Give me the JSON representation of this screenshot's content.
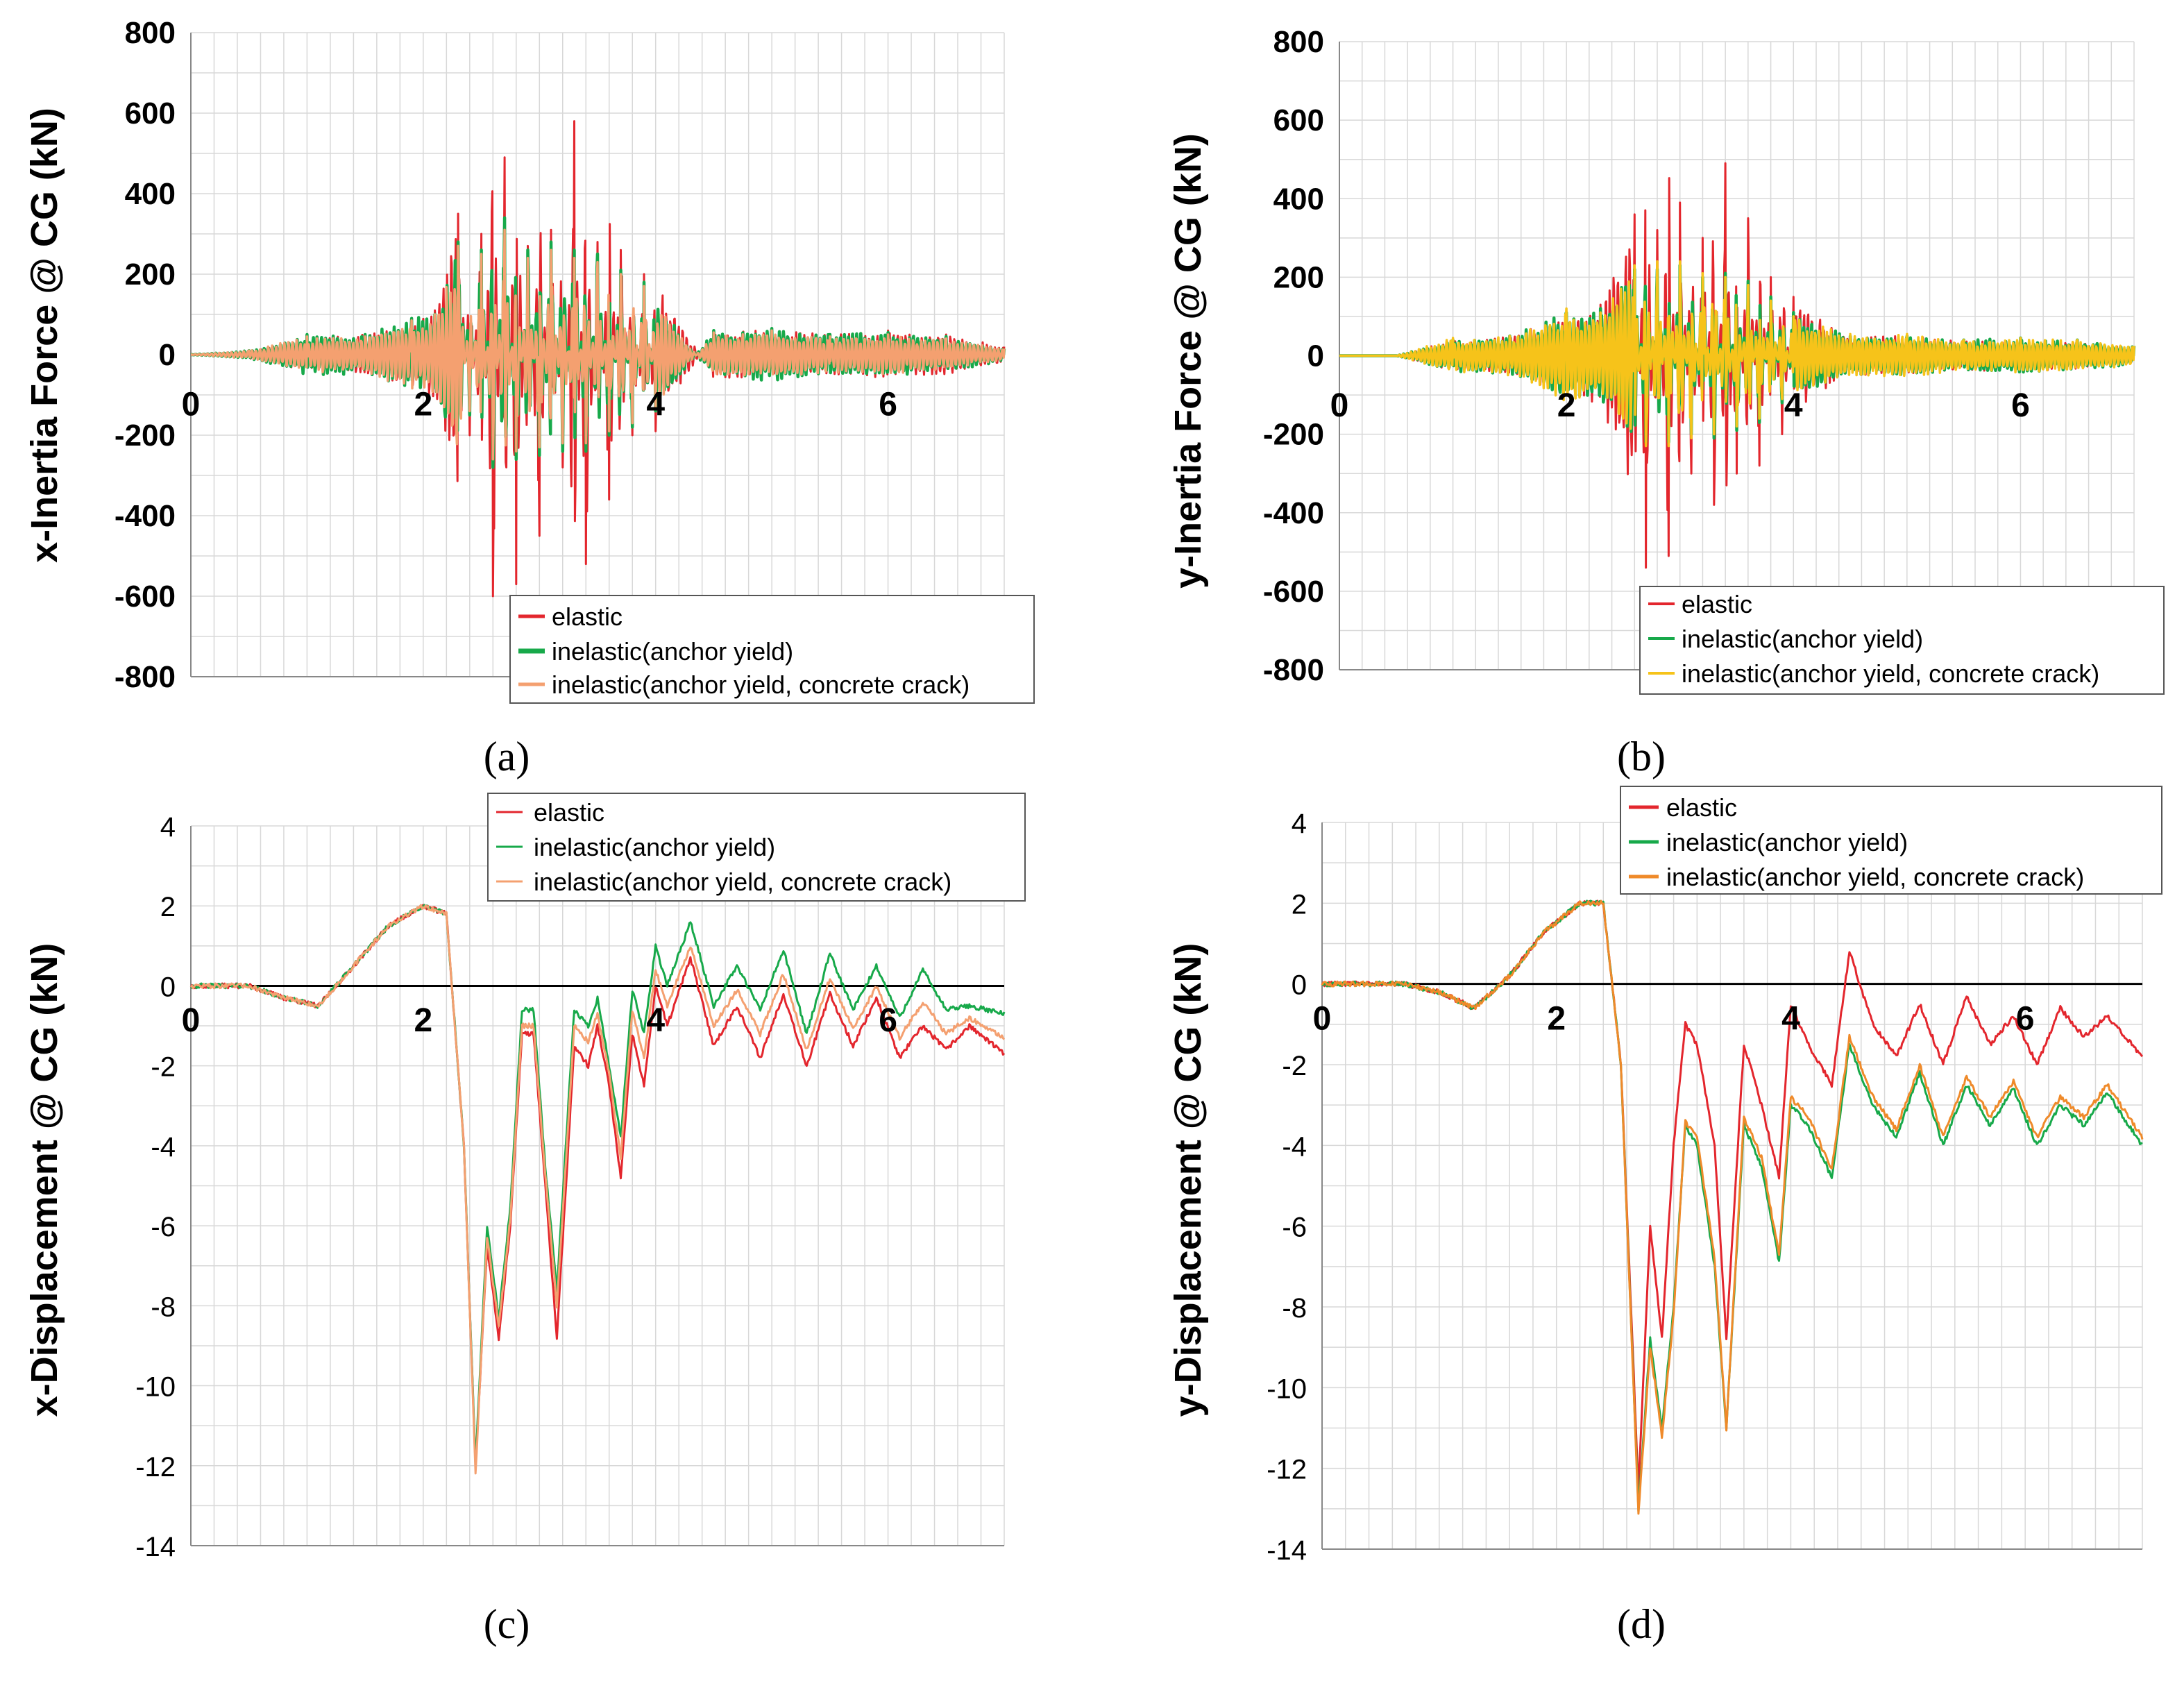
{
  "figure": {
    "captions": [
      "(a)",
      "(b)",
      "(c)",
      "(d)"
    ]
  },
  "colors": {
    "elastic": "#e3262d",
    "inelastic_anchor": "#17a94a",
    "inelastic_crack_a": "#f4a070",
    "inelastic_crack_b": "#f6c31a",
    "inelastic_crack_d": "#ef8a2a",
    "grid": "#d8d8d8",
    "axis": "#000000"
  },
  "chart_data": [
    {
      "id": "a",
      "type": "line",
      "caption": "(a)",
      "ylabel": "x-Inertia Force @ CG (kN)",
      "xlim": [
        0,
        7
      ],
      "ylim": [
        -800,
        800
      ],
      "yticks": [
        -800,
        -600,
        -400,
        -200,
        0,
        200,
        400,
        600,
        800
      ],
      "xticks": [
        0,
        2,
        4,
        6
      ],
      "legend_position": "bottom-right",
      "series": [
        {
          "name": "elastic",
          "color_key": "elastic",
          "x": [
            0,
            0.5,
            1.0,
            1.5,
            1.9,
            2.1,
            2.3,
            2.4,
            2.5,
            2.6,
            2.7,
            2.8,
            2.9,
            3.0,
            3.1,
            3.2,
            3.3,
            3.4,
            3.5,
            3.6,
            3.7,
            3.8,
            3.9,
            4.0,
            4.5,
            5.0,
            5.5,
            6.0,
            6.5,
            7.0
          ],
          "y": [
            0,
            10,
            40,
            50,
            80,
            110,
            350,
            -200,
            300,
            -600,
            490,
            -570,
            270,
            -450,
            310,
            -280,
            580,
            -520,
            280,
            -360,
            260,
            -200,
            200,
            -190,
            60,
            60,
            50,
            60,
            50,
            20
          ]
        },
        {
          "name": "inelastic(anchor yield)",
          "color_key": "inelastic_anchor",
          "x": [
            0,
            0.5,
            1.0,
            1.5,
            1.9,
            2.1,
            2.3,
            2.4,
            2.5,
            2.6,
            2.7,
            2.8,
            2.9,
            3.0,
            3.1,
            3.2,
            3.3,
            3.4,
            3.5,
            3.6,
            3.7,
            3.8,
            3.9,
            4.0,
            4.5,
            5.0,
            5.5,
            6.0,
            6.5,
            7.0
          ],
          "y": [
            0,
            10,
            50,
            50,
            90,
            100,
            280,
            -150,
            260,
            -280,
            340,
            -260,
            260,
            -250,
            280,
            -240,
            260,
            -240,
            250,
            -200,
            210,
            -180,
            180,
            -140,
            60,
            65,
            50,
            55,
            45,
            15
          ]
        },
        {
          "name": "inelastic(anchor yield, concrete crack)",
          "color_key": "inelastic_crack_a",
          "x": [
            0,
            0.5,
            1.0,
            1.5,
            1.9,
            2.1,
            2.3,
            2.4,
            2.5,
            2.6,
            2.7,
            2.8,
            2.9,
            3.0,
            3.1,
            3.2,
            3.3,
            3.4,
            3.5,
            3.6,
            3.7,
            3.8,
            3.9,
            4.0,
            4.5,
            5.0,
            5.5,
            6.0,
            6.5,
            7.0
          ],
          "y": [
            0,
            10,
            45,
            45,
            85,
            100,
            270,
            -140,
            250,
            -260,
            310,
            -240,
            240,
            -230,
            260,
            -220,
            240,
            -220,
            230,
            -190,
            200,
            -170,
            170,
            -130,
            55,
            60,
            45,
            50,
            40,
            15
          ]
        }
      ]
    },
    {
      "id": "b",
      "type": "line",
      "caption": "(b)",
      "ylabel": "y-Inertia Force @ CG (kN)",
      "xlim": [
        0,
        7
      ],
      "ylim": [
        -800,
        800
      ],
      "yticks": [
        -800,
        -600,
        -400,
        -200,
        0,
        200,
        400,
        600,
        800
      ],
      "xticks": [
        0,
        2,
        4,
        6
      ],
      "legend_position": "bottom-right",
      "series": [
        {
          "name": "elastic",
          "color_key": "elastic",
          "x": [
            0,
            0.5,
            1.0,
            1.5,
            2.0,
            2.3,
            2.6,
            2.7,
            2.8,
            2.9,
            3.0,
            3.1,
            3.2,
            3.3,
            3.4,
            3.5,
            3.6,
            3.7,
            3.8,
            3.9,
            4.0,
            4.5,
            5.0,
            5.5,
            6.0,
            6.5,
            7.0
          ],
          "y": [
            0,
            0,
            40,
            50,
            100,
            130,
            360,
            -540,
            320,
            -510,
            390,
            -300,
            300,
            -380,
            490,
            -300,
            350,
            -280,
            200,
            -200,
            150,
            50,
            50,
            40,
            40,
            35,
            20
          ]
        },
        {
          "name": "inelastic(anchor yield)",
          "color_key": "inelastic_anchor",
          "x": [
            0,
            0.5,
            1.0,
            1.5,
            2.0,
            2.3,
            2.6,
            2.7,
            2.8,
            2.9,
            3.0,
            3.1,
            3.2,
            3.3,
            3.4,
            3.5,
            3.6,
            3.7,
            3.8,
            3.9,
            4.0,
            4.5,
            5.0,
            5.5,
            6.0,
            6.5,
            7.0
          ],
          "y": [
            0,
            0,
            40,
            50,
            110,
            120,
            220,
            -220,
            220,
            -220,
            230,
            -200,
            200,
            -210,
            210,
            -190,
            190,
            -170,
            150,
            -120,
            110,
            50,
            50,
            40,
            45,
            40,
            25
          ]
        },
        {
          "name": "inelastic(anchor yield, concrete crack)",
          "color_key": "inelastic_crack_b",
          "x": [
            0,
            0.5,
            1.0,
            1.5,
            2.0,
            2.3,
            2.6,
            2.7,
            2.8,
            2.9,
            3.0,
            3.1,
            3.2,
            3.3,
            3.4,
            3.5,
            3.6,
            3.7,
            3.8,
            3.9,
            4.0,
            4.5,
            5.0,
            5.5,
            6.0,
            6.5,
            7.0
          ],
          "y": [
            0,
            0,
            45,
            50,
            120,
            110,
            230,
            -230,
            240,
            -230,
            240,
            -210,
            210,
            -200,
            200,
            -180,
            180,
            -160,
            140,
            -110,
            100,
            55,
            55,
            40,
            45,
            40,
            25
          ]
        }
      ]
    },
    {
      "id": "c",
      "type": "line",
      "caption": "(c)",
      "ylabel": "x-Displacement @ CG (kN)",
      "xlim": [
        0,
        7
      ],
      "ylim": [
        -14,
        4
      ],
      "yticks": [
        -14,
        -12,
        -10,
        -8,
        -6,
        -4,
        -2,
        0,
        2,
        4
      ],
      "xticks": [
        0,
        2,
        4,
        6
      ],
      "legend_position": "top-right",
      "series": [
        {
          "name": "elastic",
          "color_key": "elastic",
          "x": [
            0,
            0.5,
            0.8,
            1.1,
            1.4,
            1.7,
            2.0,
            2.2,
            2.35,
            2.45,
            2.55,
            2.65,
            2.75,
            2.85,
            2.95,
            3.05,
            3.15,
            3.3,
            3.42,
            3.5,
            3.6,
            3.7,
            3.8,
            3.9,
            4.0,
            4.1,
            4.3,
            4.5,
            4.7,
            4.9,
            5.1,
            5.3,
            5.5,
            5.7,
            5.9,
            6.1,
            6.3,
            6.5,
            6.7,
            7.0
          ],
          "y": [
            0,
            0,
            -0.3,
            -0.5,
            0.5,
            1.5,
            2.0,
            1.8,
            -4.0,
            -12.0,
            -6.5,
            -8.8,
            -6.0,
            -1.2,
            -1.2,
            -5.0,
            -8.8,
            -1.5,
            -2.0,
            -1.0,
            -2.5,
            -4.8,
            -1.2,
            -2.5,
            0.0,
            -1.0,
            0.7,
            -1.5,
            -0.5,
            -1.8,
            -0.2,
            -2.0,
            -0.2,
            -1.5,
            -0.3,
            -1.8,
            -1.0,
            -1.6,
            -1.0,
            -1.7
          ]
        },
        {
          "name": "inelastic(anchor yield)",
          "color_key": "inelastic_anchor",
          "x": [
            0,
            0.5,
            0.8,
            1.1,
            1.4,
            1.7,
            2.0,
            2.2,
            2.35,
            2.45,
            2.55,
            2.65,
            2.75,
            2.85,
            2.95,
            3.05,
            3.15,
            3.3,
            3.42,
            3.5,
            3.6,
            3.7,
            3.8,
            3.9,
            4.0,
            4.1,
            4.3,
            4.5,
            4.7,
            4.9,
            5.1,
            5.3,
            5.5,
            5.7,
            5.9,
            6.1,
            6.3,
            6.5,
            6.7,
            7.0
          ],
          "y": [
            0,
            0,
            -0.3,
            -0.5,
            0.5,
            1.5,
            2.0,
            1.8,
            -4.0,
            -12.0,
            -6.0,
            -8.3,
            -5.5,
            -0.6,
            -0.6,
            -4.5,
            -7.6,
            -0.6,
            -1.0,
            -0.3,
            -2.0,
            -3.8,
            -0.1,
            -1.2,
            1.0,
            0.0,
            1.6,
            -0.5,
            0.5,
            -0.6,
            0.9,
            -1.2,
            0.8,
            -0.6,
            0.5,
            -0.8,
            0.4,
            -0.6,
            -0.5,
            -0.7
          ]
        },
        {
          "name": "inelastic(anchor yield, concrete crack)",
          "color_key": "inelastic_crack_a",
          "x": [
            0,
            0.5,
            0.8,
            1.1,
            1.4,
            1.7,
            2.0,
            2.2,
            2.35,
            2.45,
            2.55,
            2.65,
            2.75,
            2.85,
            2.95,
            3.05,
            3.15,
            3.3,
            3.42,
            3.5,
            3.6,
            3.7,
            3.8,
            3.9,
            4.0,
            4.1,
            4.3,
            4.5,
            4.7,
            4.9,
            5.1,
            5.3,
            5.5,
            5.7,
            5.9,
            6.1,
            6.3,
            6.5,
            6.7,
            7.0
          ],
          "y": [
            0,
            0,
            -0.3,
            -0.5,
            0.5,
            1.5,
            2.0,
            1.8,
            -4.0,
            -12.2,
            -6.3,
            -8.5,
            -5.8,
            -1.0,
            -1.0,
            -4.7,
            -8.0,
            -1.0,
            -1.4,
            -0.7,
            -2.2,
            -4.3,
            -0.6,
            -1.8,
            0.4,
            -0.5,
            1.0,
            -1.0,
            -0.1,
            -1.2,
            0.3,
            -1.6,
            0.2,
            -1.1,
            0.0,
            -1.3,
            -0.4,
            -1.2,
            -0.8,
            -1.3
          ]
        }
      ]
    },
    {
      "id": "d",
      "type": "line",
      "caption": "(d)",
      "ylabel": "y-Displacement @ CG (kN)",
      "xlim": [
        0,
        7
      ],
      "ylim": [
        -14,
        4
      ],
      "yticks": [
        -14,
        -12,
        -10,
        -8,
        -6,
        -4,
        -2,
        0,
        2,
        4
      ],
      "xticks": [
        0,
        2,
        4,
        6
      ],
      "legend_position": "top-right",
      "series": [
        {
          "name": "elastic",
          "color_key": "elastic",
          "x": [
            0,
            0.7,
            1.0,
            1.3,
            1.6,
            1.9,
            2.2,
            2.4,
            2.55,
            2.7,
            2.8,
            2.9,
            3.0,
            3.1,
            3.2,
            3.35,
            3.45,
            3.6,
            3.75,
            3.9,
            4.0,
            4.15,
            4.35,
            4.5,
            4.7,
            4.9,
            5.1,
            5.3,
            5.5,
            5.7,
            5.9,
            6.1,
            6.3,
            6.5,
            6.7,
            7.0
          ],
          "y": [
            0,
            0,
            -0.2,
            -0.6,
            0.2,
            1.3,
            2.0,
            2.0,
            -2.0,
            -12.5,
            -6.0,
            -8.8,
            -4.0,
            -1.0,
            -1.5,
            -4.0,
            -8.8,
            -1.5,
            -3.0,
            -4.8,
            -0.5,
            -1.5,
            -2.5,
            0.8,
            -1.0,
            -1.8,
            -0.5,
            -2.0,
            -0.3,
            -1.5,
            -0.8,
            -2.0,
            -0.6,
            -1.3,
            -0.8,
            -1.8
          ]
        },
        {
          "name": "inelastic(anchor yield)",
          "color_key": "inelastic_anchor",
          "x": [
            0,
            0.7,
            1.0,
            1.3,
            1.6,
            1.9,
            2.2,
            2.4,
            2.55,
            2.7,
            2.8,
            2.9,
            3.0,
            3.1,
            3.2,
            3.35,
            3.45,
            3.6,
            3.75,
            3.9,
            4.0,
            4.15,
            4.35,
            4.5,
            4.7,
            4.9,
            5.1,
            5.3,
            5.5,
            5.7,
            5.9,
            6.1,
            6.3,
            6.5,
            6.7,
            7.0
          ],
          "y": [
            0,
            0,
            -0.2,
            -0.6,
            0.2,
            1.3,
            2.0,
            2.0,
            -2.0,
            -13.0,
            -8.8,
            -11.0,
            -8.0,
            -3.5,
            -4.0,
            -7.0,
            -11.0,
            -3.5,
            -4.5,
            -6.9,
            -3.0,
            -3.5,
            -4.8,
            -1.5,
            -3.0,
            -3.8,
            -2.2,
            -4.0,
            -2.5,
            -3.5,
            -2.6,
            -4.0,
            -3.0,
            -3.5,
            -2.7,
            -4.0
          ]
        },
        {
          "name": "inelastic(anchor yield, concrete crack)",
          "color_key": "inelastic_crack_d",
          "x": [
            0,
            0.7,
            1.0,
            1.3,
            1.6,
            1.9,
            2.2,
            2.4,
            2.55,
            2.7,
            2.8,
            2.9,
            3.0,
            3.1,
            3.2,
            3.35,
            3.45,
            3.6,
            3.75,
            3.9,
            4.0,
            4.15,
            4.35,
            4.5,
            4.7,
            4.9,
            5.1,
            5.3,
            5.5,
            5.7,
            5.9,
            6.1,
            6.3,
            6.5,
            6.7,
            7.0
          ],
          "y": [
            0,
            0,
            -0.2,
            -0.6,
            0.2,
            1.3,
            2.0,
            2.0,
            -2.0,
            -13.1,
            -9.0,
            -11.2,
            -8.2,
            -3.4,
            -3.8,
            -6.8,
            -11.0,
            -3.3,
            -4.3,
            -6.7,
            -2.8,
            -3.3,
            -4.6,
            -1.3,
            -2.8,
            -3.6,
            -2.0,
            -3.8,
            -2.3,
            -3.3,
            -2.4,
            -3.8,
            -2.8,
            -3.3,
            -2.5,
            -3.8
          ]
        }
      ]
    }
  ]
}
